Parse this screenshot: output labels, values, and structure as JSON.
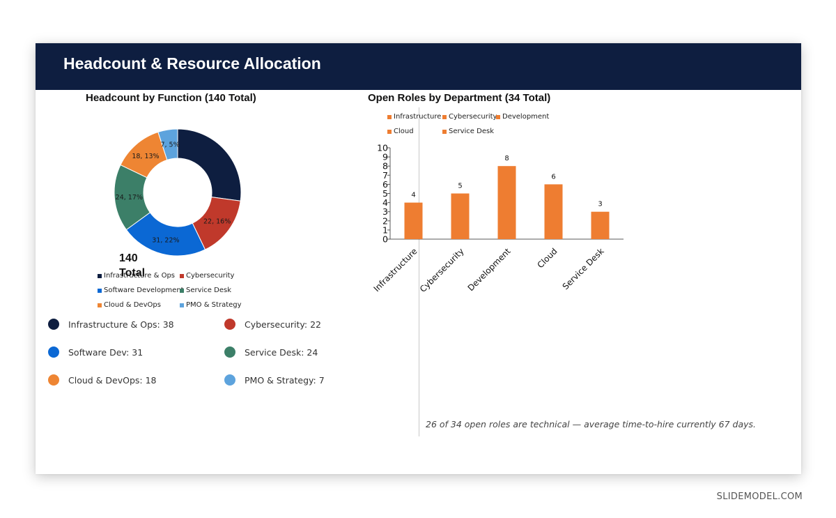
{
  "slide": {
    "title": "Headcount & Resource Allocation",
    "footnote": "26 of 34 open roles are technical — average time-to-hire currently 67 days.",
    "brand": "SLIDEMODEL.COM"
  },
  "donut": {
    "center_label": "140 Total",
    "stats": [
      {
        "label": "Infrastructure & Ops: 38",
        "color": "#0e1e40"
      },
      {
        "label": "Cybersecurity: 22",
        "color": "#c0392b"
      },
      {
        "label": "Software Dev: 31",
        "color": "#0b68d4"
      },
      {
        "label": "Service Desk: 24",
        "color": "#3c7f68"
      },
      {
        "label": "Cloud & DevOps: 18",
        "color": "#ee8533"
      },
      {
        "label": "PMO & Strategy: 7",
        "color": "#5da3dd"
      }
    ]
  },
  "chart_data": [
    {
      "type": "pie",
      "donut": true,
      "title": "Headcount by Function (140 Total)",
      "categories": [
        "Infrastructure & Ops",
        "Cybersecurity",
        "Software Development",
        "Service Desk",
        "Cloud & DevOps",
        "PMO & Strategy"
      ],
      "values": [
        38,
        22,
        31,
        24,
        18,
        7
      ],
      "data_labels": [
        "",
        "22, 16%",
        "31, 22%",
        "24, 17%",
        "18, 13%",
        "7, 5%"
      ],
      "colors": [
        "#0e1e40",
        "#c0392b",
        "#0b68d4",
        "#3c7f68",
        "#ee8533",
        "#5da3dd"
      ],
      "legend": "bottom"
    },
    {
      "type": "bar",
      "title": "Open Roles by Department (34 Total)",
      "categories": [
        "Infrastructure",
        "Cybersecurity",
        "Development",
        "Cloud",
        "Service Desk"
      ],
      "values": [
        4,
        5,
        8,
        6,
        3
      ],
      "ylim": [
        0,
        10
      ],
      "yticks": [
        "0",
        "1",
        "2",
        "3",
        "4",
        "5",
        "6",
        "7",
        "8",
        "9",
        "10"
      ],
      "color": "#ee7d31",
      "legend_entries": [
        "Infrastructure",
        "Cybersecurity",
        "Development",
        "Cloud",
        "Service Desk"
      ],
      "legend": "top",
      "grid": false
    }
  ]
}
